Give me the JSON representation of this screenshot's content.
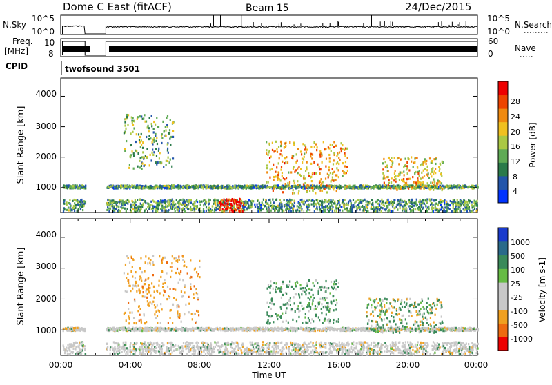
{
  "header": {
    "station": "Dome C East (fitACF)",
    "beam": "Beam 15",
    "date": "24/Dec/2015"
  },
  "top_panels": {
    "nsky_label": "N.Sky",
    "nsky_ticks": [
      "10^5",
      "10^0"
    ],
    "nsearch_label": "N.Search",
    "nsearch_ticks": [
      "10^5",
      "10^0"
    ],
    "freq_label": "Freq.",
    "freq_unit": "[MHz]",
    "freq_ticks": [
      "10",
      "8"
    ],
    "nave_label": "Nave",
    "nave_ticks": [
      "60",
      "0"
    ],
    "cpid_label": "CPID",
    "cpid_value": "twofsound 3501"
  },
  "power_panel": {
    "ylabel": "Slant Range [km]",
    "yticks": [
      "4000",
      "3000",
      "2000",
      "1000"
    ],
    "colorbar_label": "Power [dB]",
    "colorbar_ticks": [
      "28",
      "24",
      "20",
      "16",
      "12",
      "8",
      "4"
    ],
    "colors": [
      "#0033ff",
      "#2255aa",
      "#2a7a4a",
      "#5faa55",
      "#aac844",
      "#f0c020",
      "#f08a10",
      "#ee4400",
      "#ee0000"
    ]
  },
  "velocity_panel": {
    "ylabel": "Slant Range [km]",
    "yticks": [
      "4000",
      "3000",
      "2000",
      "1000"
    ],
    "colorbar_label": "Velocity [m s-1]",
    "colorbar_ticks": [
      "1000",
      "500",
      "100",
      "25",
      "-25",
      "-100",
      "-500",
      "-1000"
    ],
    "colors": [
      "#1a3acc",
      "#2a6a8a",
      "#3a8a5a",
      "#66bb44",
      "#c8c8c8",
      "#c8c8c8",
      "#f0a020",
      "#ee6a10",
      "#ee0000"
    ]
  },
  "xaxis": {
    "ticks": [
      "00:00",
      "04:00",
      "08:00",
      "12:00",
      "16:00",
      "20:00",
      "00:00"
    ],
    "label": "Time UT"
  },
  "chart_data": [
    {
      "type": "heatmap",
      "title": "Power",
      "xlabel": "Time UT",
      "ylabel": "Slant Range [km]",
      "x_range": [
        "00:00",
        "24:00"
      ],
      "ylim": [
        180,
        4600
      ],
      "colorbar": {
        "label": "Power [dB]",
        "range": [
          0,
          30
        ]
      },
      "data_gaps_hours": [
        [
          0,
          0.1
        ],
        [
          1.4,
          2.6
        ]
      ],
      "features": [
        {
          "name": "near-range band",
          "t_start": 0.1,
          "t_end": 24,
          "range_km": [
            200,
            600
          ],
          "level_db": 10
        },
        {
          "name": "1000 km band",
          "t_start": 0.1,
          "t_end": 24,
          "range_km": [
            960,
            1060
          ],
          "level_db": 10
        },
        {
          "name": "strong near-range echo",
          "t_start": 9.1,
          "t_end": 10.5,
          "range_km": [
            200,
            620
          ],
          "level_db": 28
        },
        {
          "name": "high-range scatter",
          "t_start": 3.6,
          "t_end": 6.5,
          "range_km": [
            1600,
            3400
          ],
          "level_db": 12
        },
        {
          "name": "afternoon echoes",
          "t_start": 11.8,
          "t_end": 16.5,
          "range_km": [
            800,
            2500
          ],
          "level_db": 20
        },
        {
          "name": "evening echoes",
          "t_start": 18.5,
          "t_end": 22.0,
          "range_km": [
            900,
            2000
          ],
          "level_db": 18
        }
      ]
    },
    {
      "type": "heatmap",
      "title": "Velocity",
      "xlabel": "Time UT",
      "ylabel": "Slant Range [km]",
      "x_range": [
        "00:00",
        "24:00"
      ],
      "ylim": [
        180,
        4600
      ],
      "colorbar": {
        "label": "Velocity [m s-1]",
        "range": [
          -1000,
          1000
        ]
      },
      "data_gaps_hours": [
        [
          0,
          0.1
        ],
        [
          1.4,
          2.6
        ]
      ],
      "features": [
        {
          "name": "ground scatter 1000 km",
          "t_start": 0.1,
          "t_end": 24,
          "range_km": [
            960,
            1060
          ],
          "velocity": 0
        },
        {
          "name": "near-range ground scatter",
          "t_start": 0.1,
          "t_end": 24,
          "range_km": [
            200,
            600
          ],
          "velocity": 0
        },
        {
          "name": "morning negative velocities",
          "t_start": 3.6,
          "t_end": 8.0,
          "range_km": [
            1200,
            3400
          ],
          "velocity": -300
        },
        {
          "name": "midday positive velocities",
          "t_start": 11.8,
          "t_end": 16.0,
          "range_km": [
            1200,
            2600
          ],
          "velocity": 200
        },
        {
          "name": "evening mixed",
          "t_start": 17.5,
          "t_end": 22.0,
          "range_km": [
            900,
            2000
          ],
          "velocity": 100
        }
      ]
    },
    {
      "type": "line",
      "title": "Freq.",
      "ylabel": "[MHz]",
      "ylim": [
        8,
        10
      ],
      "series": [
        {
          "values": [
            10,
            10
          ]
        }
      ]
    }
  ]
}
